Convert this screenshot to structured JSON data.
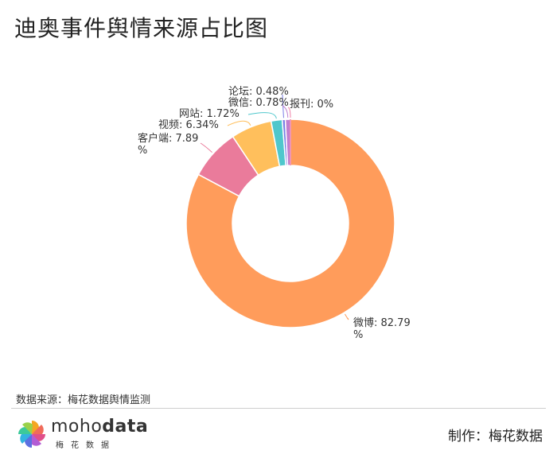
{
  "header": {
    "title": "迪奥事件舆情来源占比图"
  },
  "footer": {
    "source": "数据来源：梅花数据舆情监测",
    "brand_prefix": "moho",
    "brand_suffix": "data",
    "brand_sub": "梅花数据",
    "credit": "制作：梅花数据"
  },
  "chart_data": {
    "type": "pie",
    "variant": "donut",
    "categories": [
      "微博",
      "客户端",
      "视频",
      "网站",
      "论坛",
      "微信",
      "报刊"
    ],
    "values": [
      82.79,
      7.89,
      6.34,
      1.72,
      0.48,
      0.78,
      0
    ],
    "unit": "%",
    "labels": [
      {
        "line1": "微博: 82.79",
        "line2": "%"
      },
      {
        "line1": "客户端: 7.89",
        "line2": "%"
      },
      {
        "line1": "视频: 6.34%",
        "line2": ""
      },
      {
        "line1": "网站: 1.72%",
        "line2": ""
      },
      {
        "line1": "论坛: 0.48%",
        "line2": ""
      },
      {
        "line1": "微信: 0.78%",
        "line2": ""
      },
      {
        "line1": "报刊: 0%",
        "line2": ""
      }
    ],
    "colors": [
      "#ff9c5b",
      "#ea7b9b",
      "#ffbf5c",
      "#4fc7cc",
      "#7a7de6",
      "#c07fd0",
      "#f07fa5"
    ]
  }
}
